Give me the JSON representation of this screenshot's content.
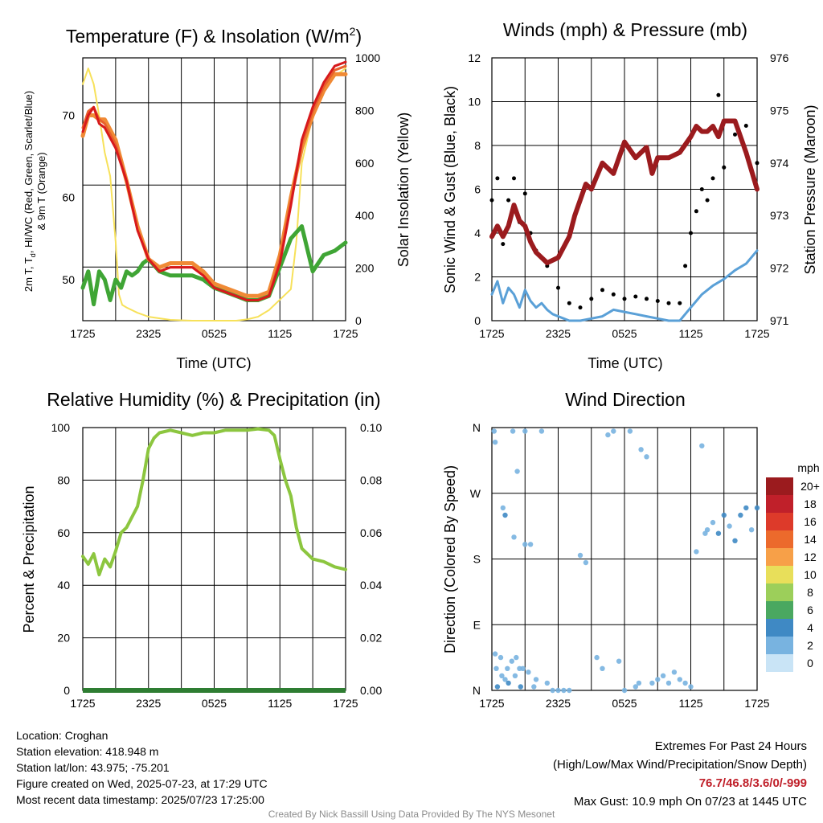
{
  "colors": {
    "temp": "#d7191c",
    "dewpoint": "#3fa535",
    "heat_index": "#e8602c",
    "temp_9m": "#f08a35",
    "insolation": "#f7e15a",
    "sonic_wind": "#5aa0d7",
    "gust": "#000000",
    "pressure": "#9b1b1e",
    "humidity": "#8cc63f",
    "precip": "#2e7d32"
  },
  "panels": {
    "temp": {
      "title": "Temperature (F) & Insolation (W/m",
      "title_sup": "2",
      "title_end": ")",
      "ylabel_left_1": "2m T, T",
      "ylabel_left_sub": "d",
      "ylabel_left_2": ", HI/WC (Red, Green, Scarlet/Blue)",
      "ylabel_left_3": "& 9m T (Orange)",
      "ylabel_right": "Solar Insolation (Yellow)",
      "xlabel": "Time (UTC)"
    },
    "wind": {
      "title": "Winds (mph) & Pressure (mb)",
      "ylabel_left": "Sonic Wind & Gust (Blue, Black)",
      "ylabel_right": "Station Pressure (Maroon)",
      "xlabel": "Time (UTC)"
    },
    "rh": {
      "title": "Relative Humidity (%) & Precipitation (in)",
      "ylabel_left": "Percent & Precipitation"
    },
    "dir": {
      "title": "Wind Direction",
      "ylabel_left": "Direction (Colored By Speed)",
      "legend_title": "mph"
    }
  },
  "info": {
    "location": "Location: Croghan",
    "elevation": "Station elevation: 418.948 m",
    "latlon": "Station lat/lon: 43.975; -75.201",
    "created": "Figure created on Wed, 2025-07-23, at 17:29 UTC",
    "recent": "Most recent data timestamp: 2025/07/23 17:25:00",
    "extremes_title": "Extremes For Past 24 Hours",
    "extremes_sub": "(High/Low/Max Wind/Precipitation/Snow Depth)",
    "extremes_values": "76.7/46.8/3.6/0/-999",
    "max_gust": "Max Gust: 10.9 mph On 07/23 at 1445 UTC",
    "credit": "Created By Nick Bassill Using Data Provided By The NYS Mesonet"
  },
  "chart_data": [
    {
      "type": "line",
      "title": "Temperature (F) & Insolation (W/m2)",
      "xlabel": "Time (UTC)",
      "x_ticks": [
        "1725",
        "2325",
        "0525",
        "1125",
        "1725"
      ],
      "x_hours": [
        0,
        24
      ],
      "ylim": [
        45,
        77
      ],
      "y_ticks": [
        50,
        60,
        70
      ],
      "y2lim": [
        0,
        1000
      ],
      "y2_ticks": [
        0,
        200,
        400,
        600,
        800,
        1000
      ],
      "series": [
        {
          "name": "2m T (Red)",
          "axis": "left",
          "x": [
            0,
            0.5,
            1,
            1.5,
            2,
            3,
            4,
            5,
            6,
            7,
            8,
            9,
            10,
            11,
            12,
            13,
            14,
            15,
            16,
            17,
            18,
            19,
            20,
            21,
            22,
            23,
            24
          ],
          "values": [
            68,
            70,
            71,
            69,
            68.5,
            66,
            62,
            56,
            52.5,
            51,
            51.5,
            51.5,
            51.5,
            50.5,
            49,
            48.5,
            48,
            47.5,
            47.5,
            48,
            52,
            59,
            67,
            71,
            74,
            76,
            76.5
          ]
        },
        {
          "name": "9m T (Orange)",
          "axis": "left",
          "x": [
            0,
            0.5,
            1,
            1.5,
            2,
            3,
            4,
            5,
            6,
            7,
            8,
            9,
            10,
            11,
            12,
            13,
            14,
            15,
            16,
            17,
            18,
            19,
            20,
            21,
            22,
            23,
            24
          ],
          "values": [
            67.5,
            70,
            70,
            69.5,
            69.5,
            67,
            62,
            56.5,
            52.5,
            51.5,
            52,
            52,
            52,
            51,
            49.5,
            49,
            48.5,
            48,
            48,
            48.5,
            53,
            60,
            66,
            70,
            73,
            75,
            75
          ]
        },
        {
          "name": "HI/WC (Scarlet)",
          "axis": "left",
          "x": [
            0,
            0.5,
            1,
            1.5,
            2,
            3,
            4,
            5,
            6,
            7,
            8,
            9,
            10,
            11,
            12,
            13,
            14,
            15,
            16,
            17,
            18,
            19,
            20,
            21,
            22,
            23,
            24
          ],
          "values": [
            68.5,
            70.5,
            71,
            69.5,
            69,
            66.5,
            62,
            56,
            52.5,
            51,
            51.5,
            51.5,
            51.5,
            50.5,
            49,
            48.5,
            48,
            47.5,
            47.5,
            48,
            52.5,
            59.5,
            66.5,
            70.5,
            73.5,
            75.5,
            76
          ]
        },
        {
          "name": "Td (Green)",
          "axis": "left",
          "x": [
            0,
            0.5,
            1,
            1.5,
            2,
            2.5,
            3,
            3.5,
            4,
            4.5,
            5,
            5.5,
            6,
            7,
            8,
            9,
            10,
            11,
            12,
            13,
            14,
            15,
            16,
            17,
            18,
            19,
            20,
            21,
            22,
            23,
            24
          ],
          "values": [
            49,
            51,
            47,
            51,
            50,
            47.5,
            50,
            49,
            51,
            50.5,
            51,
            52,
            52.5,
            51,
            50.5,
            50.5,
            50.5,
            50,
            49,
            48.5,
            48,
            47.5,
            47.5,
            48,
            51.5,
            55,
            56.5,
            51,
            53,
            53.5,
            54.5
          ]
        },
        {
          "name": "Solar Insolation (Yellow)",
          "axis": "right",
          "x": [
            0,
            0.5,
            1,
            1.5,
            2,
            2.5,
            3,
            3.3,
            3.6,
            4,
            5,
            6,
            8,
            10,
            12,
            14,
            15,
            16,
            17,
            18,
            19,
            19.5,
            20,
            21,
            22,
            23,
            24
          ],
          "values": [
            900,
            960,
            900,
            780,
            640,
            550,
            300,
            100,
            60,
            50,
            30,
            15,
            3,
            0,
            0,
            0,
            5,
            15,
            40,
            80,
            120,
            300,
            600,
            780,
            870,
            930,
            960
          ]
        }
      ]
    },
    {
      "type": "line",
      "title": "Winds (mph) & Pressure (mb)",
      "xlabel": "Time (UTC)",
      "x_ticks": [
        "1725",
        "2325",
        "0525",
        "1125",
        "1725"
      ],
      "ylim": [
        0,
        12
      ],
      "y_ticks": [
        0,
        2,
        4,
        6,
        8,
        10,
        12
      ],
      "y2lim": [
        971,
        976
      ],
      "y2_ticks": [
        971,
        972,
        973,
        974,
        975,
        976
      ],
      "series": [
        {
          "name": "Sonic Wind (Blue)",
          "axis": "left",
          "x": [
            0,
            0.5,
            1,
            1.5,
            2,
            2.5,
            3,
            3.5,
            4,
            4.5,
            5,
            5.5,
            6,
            6.5,
            7,
            8,
            9,
            10,
            11,
            12,
            13,
            14,
            15,
            16,
            17,
            18,
            19,
            20,
            21,
            22,
            23,
            24
          ],
          "values": [
            1.2,
            1.8,
            0.8,
            1.5,
            1.2,
            0.6,
            1.4,
            0.9,
            0.6,
            0.8,
            0.5,
            0.3,
            0.2,
            0.1,
            0,
            0,
            0.1,
            0.2,
            0.5,
            0.4,
            0.3,
            0.2,
            0.1,
            0,
            0,
            0.6,
            1.2,
            1.6,
            1.9,
            2.3,
            2.6,
            3.2
          ]
        },
        {
          "name": "Gust (Black)",
          "axis": "left",
          "x": [
            0,
            0.5,
            1,
            1.5,
            2,
            2.5,
            3,
            3.5,
            4,
            5,
            6,
            7,
            8,
            9,
            10,
            11,
            12,
            13,
            14,
            15,
            16,
            17,
            17.5,
            18,
            18.5,
            19,
            19.5,
            20,
            20.5,
            21,
            22,
            23,
            24
          ],
          "values": [
            5.5,
            6.5,
            3.5,
            5.5,
            6.5,
            4.5,
            5.8,
            4.0,
            3.2,
            2.5,
            1.5,
            0.8,
            0.6,
            1.0,
            1.4,
            1.2,
            1.0,
            1.1,
            1.0,
            0.9,
            0.8,
            0.8,
            2.5,
            4.0,
            5.0,
            6.0,
            5.5,
            6.5,
            10.3,
            7.0,
            8.5,
            8.9,
            7.2
          ]
        },
        {
          "name": "Station Pressure (Maroon)",
          "axis": "right",
          "x": [
            0,
            0.5,
            1,
            1.5,
            2,
            2.5,
            3,
            3.5,
            4,
            5,
            6,
            7,
            7.5,
            8,
            8.5,
            9,
            10,
            11,
            12,
            13,
            14,
            14.5,
            15,
            16,
            17,
            18,
            18.5,
            19,
            19.5,
            20,
            20.5,
            21,
            22,
            23,
            24
          ],
          "values": [
            972.6,
            972.8,
            972.6,
            972.8,
            973.2,
            972.9,
            972.8,
            972.5,
            972.3,
            972.1,
            972.2,
            972.6,
            973.0,
            973.3,
            973.6,
            973.5,
            974.0,
            973.8,
            974.4,
            974.1,
            974.3,
            973.8,
            974.1,
            974.1,
            974.2,
            974.5,
            974.7,
            974.6,
            974.6,
            974.7,
            974.5,
            974.8,
            974.8,
            974.2,
            973.5
          ]
        }
      ]
    },
    {
      "type": "line",
      "title": "Relative Humidity (%) & Precipitation (in)",
      "x_ticks": [
        "1725",
        "2325",
        "0525",
        "1125",
        "1725"
      ],
      "ylim": [
        0,
        100
      ],
      "y_ticks": [
        0,
        20,
        40,
        60,
        80,
        100
      ],
      "y2lim": [
        0,
        0.1
      ],
      "y2_ticks": [
        "0.00",
        "0.02",
        "0.04",
        "0.06",
        "0.08",
        "0.10"
      ],
      "series": [
        {
          "name": "Relative Humidity",
          "axis": "left",
          "x": [
            0,
            0.5,
            1,
            1.5,
            2,
            2.5,
            3,
            3.5,
            4,
            4.5,
            5,
            5.5,
            6,
            6.5,
            7,
            8,
            9,
            10,
            11,
            12,
            13,
            14,
            15,
            16,
            17,
            17.5,
            18,
            18.5,
            19,
            19.5,
            20,
            21,
            22,
            23,
            24
          ],
          "values": [
            51,
            48,
            52,
            44,
            50,
            47,
            53,
            60,
            62,
            66,
            70,
            80,
            92,
            96,
            98,
            99,
            98,
            97,
            98,
            98,
            99,
            99,
            99,
            99.5,
            99,
            97,
            88,
            80,
            74,
            62,
            54,
            50,
            49,
            47,
            46
          ]
        },
        {
          "name": "Precipitation",
          "axis": "right",
          "x": [
            0,
            24
          ],
          "values": [
            0,
            0
          ]
        }
      ]
    },
    {
      "type": "scatter",
      "title": "Wind Direction",
      "x_ticks": [
        "1725",
        "2325",
        "0525",
        "1125",
        "1725"
      ],
      "y_ticks": [
        "N",
        "E",
        "S",
        "W",
        "N"
      ],
      "ylim_deg": [
        0,
        360
      ],
      "legend": {
        "title": "mph",
        "labels": [
          "20+",
          "18",
          "16",
          "14",
          "12",
          "10",
          "8",
          "6",
          "4",
          "2",
          "0"
        ],
        "colors": [
          "#9b1b1e",
          "#c0202a",
          "#dd3a2a",
          "#ec6a2c",
          "#f7a048",
          "#e8df5a",
          "#9ccf5a",
          "#4aa860",
          "#3f89c4",
          "#78b3e0",
          "#c9e4f6"
        ]
      },
      "points": [
        [
          0.2,
          355,
          1.5
        ],
        [
          0.3,
          340,
          1
        ],
        [
          0.3,
          50,
          2
        ],
        [
          0.4,
          30,
          1
        ],
        [
          0.5,
          5,
          3
        ],
        [
          0.8,
          45,
          2
        ],
        [
          0.9,
          20,
          1.5
        ],
        [
          1,
          250,
          2
        ],
        [
          1.2,
          240,
          3
        ],
        [
          1.2,
          15,
          2
        ],
        [
          1.4,
          30,
          1.5
        ],
        [
          1.5,
          10,
          3
        ],
        [
          1.8,
          40,
          2
        ],
        [
          1.9,
          355,
          1
        ],
        [
          2,
          210,
          1.5
        ],
        [
          2.1,
          20,
          2
        ],
        [
          2.2,
          45,
          1
        ],
        [
          2.3,
          300,
          1
        ],
        [
          2.5,
          30,
          2
        ],
        [
          2.6,
          5,
          3
        ],
        [
          2.8,
          30,
          1
        ],
        [
          3,
          355,
          1
        ],
        [
          3,
          200,
          1
        ],
        [
          3.3,
          25,
          1
        ],
        [
          3.5,
          200,
          1
        ],
        [
          3.8,
          5,
          1
        ],
        [
          4,
          15,
          1
        ],
        [
          4.5,
          355,
          2
        ],
        [
          5,
          10,
          1
        ],
        [
          5.5,
          0,
          1
        ],
        [
          6,
          0,
          1
        ],
        [
          6.5,
          0,
          1
        ],
        [
          7,
          0,
          1
        ],
        [
          8,
          185,
          1
        ],
        [
          8.5,
          175,
          1
        ],
        [
          9.5,
          45,
          1
        ],
        [
          10,
          30,
          1
        ],
        [
          10.5,
          350,
          1
        ],
        [
          11,
          355,
          1
        ],
        [
          11.5,
          40,
          1
        ],
        [
          12,
          0,
          1
        ],
        [
          12.5,
          355,
          1
        ],
        [
          13,
          5,
          1
        ],
        [
          13.3,
          10,
          1
        ],
        [
          13.5,
          330,
          1
        ],
        [
          14,
          320,
          1
        ],
        [
          14.5,
          10,
          1
        ],
        [
          15,
          15,
          1
        ],
        [
          15.5,
          20,
          1
        ],
        [
          16,
          10,
          1
        ],
        [
          16.5,
          25,
          1
        ],
        [
          17,
          15,
          1
        ],
        [
          17.5,
          10,
          1
        ],
        [
          18,
          5,
          1
        ],
        [
          18.5,
          190,
          1
        ],
        [
          19,
          335,
          1
        ],
        [
          19.3,
          215,
          1
        ],
        [
          19.5,
          220,
          2
        ],
        [
          20,
          230,
          2
        ],
        [
          20.5,
          215,
          3
        ],
        [
          21,
          240,
          3
        ],
        [
          21.5,
          225,
          2
        ],
        [
          22,
          205,
          3
        ],
        [
          22.5,
          240,
          3
        ],
        [
          23,
          250,
          4
        ],
        [
          23.5,
          220,
          2
        ],
        [
          24,
          250,
          3
        ]
      ]
    }
  ]
}
